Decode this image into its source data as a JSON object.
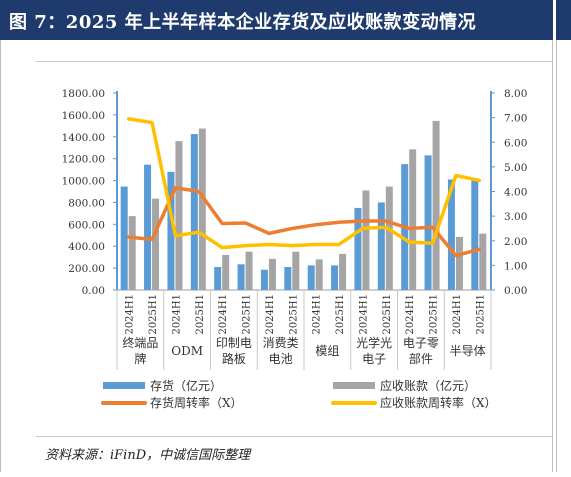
{
  "header": {
    "title": "图 7：2025 年上半年样本企业存货及应收账款变动情况"
  },
  "footer": {
    "source": "资料来源：iFinD，中诚信国际整理"
  },
  "chart_data": {
    "type": "bar",
    "x": [
      "2024H1",
      "2025H1",
      "2024H1",
      "2025H1",
      "2024H1",
      "2025H1",
      "2024H1",
      "2025H1",
      "2024H1",
      "2025H1",
      "2024H1",
      "2025H1",
      "2024H1",
      "2025H1",
      "2024H1",
      "2025H1"
    ],
    "groups": [
      {
        "label": "终端品\n牌"
      },
      {
        "label": "ODM"
      },
      {
        "label": "印制电\n路板"
      },
      {
        "label": "消费类\n电池"
      },
      {
        "label": "模组"
      },
      {
        "label": "光学光\n电子"
      },
      {
        "label": "电子零\n部件"
      },
      {
        "label": "半导体"
      }
    ],
    "series": [
      {
        "name": "存货（亿元）",
        "kind": "bar",
        "axis": "left",
        "color": "#5b9bd5",
        "values": [
          945,
          1145,
          1080,
          1425,
          210,
          235,
          185,
          210,
          225,
          225,
          750,
          800,
          1150,
          1230,
          1010,
          1000
        ]
      },
      {
        "name": "应收账款（亿元）",
        "kind": "bar",
        "axis": "left",
        "color": "#a5a5a5",
        "values": [
          675,
          835,
          1360,
          1475,
          320,
          350,
          285,
          350,
          280,
          330,
          910,
          945,
          1285,
          1545,
          485,
          515
        ]
      },
      {
        "name": "存货周转率（X）",
        "kind": "line",
        "axis": "right",
        "color": "#ed7d31",
        "values": [
          2.15,
          2.05,
          4.15,
          4.0,
          2.7,
          2.72,
          2.3,
          2.5,
          2.65,
          2.75,
          2.8,
          2.8,
          2.5,
          2.55,
          1.4,
          1.65
        ]
      },
      {
        "name": "应收账款周转率（X）",
        "kind": "line",
        "axis": "right",
        "color": "#ffc000",
        "values": [
          6.95,
          6.8,
          2.2,
          2.35,
          1.72,
          1.8,
          1.85,
          1.8,
          1.85,
          1.85,
          2.5,
          2.55,
          1.95,
          1.9,
          4.65,
          4.45
        ]
      }
    ],
    "ylim_left": [
      0,
      1800
    ],
    "yticks_left": [
      "0.00",
      "200.00",
      "400.00",
      "600.00",
      "800.00",
      "1000.00",
      "1200.00",
      "1400.00",
      "1600.00",
      "1800.00"
    ],
    "ylim_right": [
      0,
      8
    ],
    "yticks_right": [
      "0.00",
      "1.00",
      "2.00",
      "3.00",
      "4.00",
      "5.00",
      "6.00",
      "7.00",
      "8.00"
    ],
    "legend": "bottom"
  }
}
